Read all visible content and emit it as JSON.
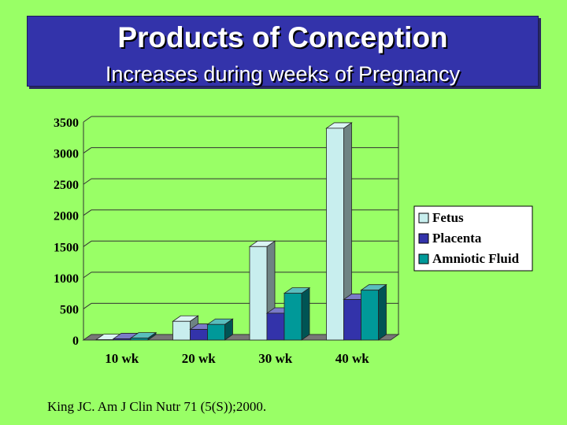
{
  "slide": {
    "title": "Products of Conception",
    "subtitle": "Increases during weeks of Pregnancy",
    "citation": "King JC. Am J Clin Nutr 71 (5(S));2000."
  },
  "chart_data": {
    "type": "bar",
    "style": "3d-clustered",
    "categories": [
      "10 wk",
      "20 wk",
      "30 wk",
      "40 wk"
    ],
    "series": [
      {
        "name": "Fetus",
        "color": "#c8eeee",
        "values": [
          5,
          300,
          1500,
          3400
        ]
      },
      {
        "name": "Placenta",
        "color": "#3333aa",
        "values": [
          20,
          170,
          430,
          650
        ]
      },
      {
        "name": "Amniotic Fluid",
        "color": "#009999",
        "values": [
          30,
          250,
          750,
          800
        ]
      }
    ],
    "yticks": [
      "0",
      "500",
      "1000",
      "1500",
      "2000",
      "2500",
      "3000",
      "3500"
    ],
    "ylim": [
      0,
      3500
    ],
    "grid": true,
    "legend": "right",
    "title": "",
    "xlabel": "",
    "ylabel": ""
  }
}
